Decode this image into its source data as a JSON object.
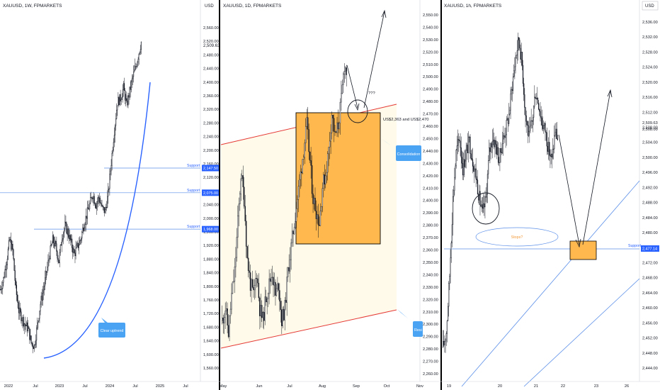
{
  "panels": [
    {
      "symbol": "XAUUSD, 1W, FPMARKETS",
      "currency": "USD",
      "price_ticks": [
        "2,560.00",
        "2,520.00",
        "2,480.00",
        "2,440.00",
        "2,400.00",
        "2,360.00",
        "2,320.00",
        "2,280.00",
        "2,240.00",
        "2,200.00",
        "2,160.00",
        "2,120.00",
        "2,080.00",
        "2,040.00",
        "2,000.00",
        "1,960.00",
        "1,920.00",
        "1,880.00",
        "1,840.00",
        "1,800.00",
        "1,760.00",
        "1,720.00",
        "1,680.00",
        "1,640.00",
        "1,600.00",
        "1,560.00"
      ],
      "time_ticks": [
        "2022",
        "Jul",
        "2023",
        "Jul",
        "2024",
        "Jul",
        "2025",
        "Jul"
      ],
      "last_price": "2,509.63",
      "support_levels": [
        {
          "label": "Support",
          "tag": "2,147.50"
        },
        {
          "label": "Support",
          "tag": "2,075.00"
        },
        {
          "label": "Support",
          "tag": "1,968.00"
        }
      ],
      "callout": "Clear uptrend"
    },
    {
      "symbol": "XAUUSD, 1D, FPMARKETS",
      "price_ticks": [
        "2,550.00",
        "2,540.00",
        "2,530.00",
        "2,520.00",
        "2,510.00",
        "2,500.00",
        "2,490.00",
        "2,480.00",
        "2,470.00",
        "2,460.00",
        "2,450.00",
        "2,440.00",
        "2,430.00",
        "2,420.00",
        "2,410.00",
        "2,400.00",
        "2,390.00",
        "2,380.00",
        "2,370.00",
        "2,360.00",
        "2,350.00",
        "2,340.00",
        "2,330.00",
        "2,320.00",
        "2,310.00",
        "2,300.00",
        "2,290.00",
        "2,280.00",
        "2,270.00",
        "2,260.00"
      ],
      "time_ticks": [
        "May",
        "Jun",
        "Jul",
        "Aug",
        "Sep",
        "Oct",
        "Nov"
      ],
      "question": "???",
      "range_note": "US$2,363 and US$2,470",
      "callout": "Consolidation",
      "callout2": "Resi"
    },
    {
      "symbol": "XAUUSD, 1h, FPMARKETS",
      "currency": "USD",
      "price_ticks": [
        "2,536.00",
        "2,532.00",
        "2,528.00",
        "2,524.00",
        "2,520.00",
        "2,516.00",
        "2,512.00",
        "2,508.00",
        "2,504.00",
        "2,500.00",
        "2,496.00",
        "2,492.00",
        "2,488.00",
        "2,484.00",
        "2,480.00",
        "2,476.00",
        "2,472.00",
        "2,468.00",
        "2,464.00",
        "2,460.00",
        "2,456.00",
        "2,452.00",
        "2,448.00",
        "2,444.00"
      ],
      "time_ticks": [
        "19",
        "20",
        "21",
        "22",
        "23",
        "26"
      ],
      "last_price": "2,509.63",
      "last_price_sub": "2,508.00",
      "support_label": "Support",
      "support_tag": "2,477.14",
      "stops_note": "Stops?"
    }
  ],
  "chart_data": [
    {
      "type": "candlestick",
      "title": "XAUUSD, 1W, FPMARKETS",
      "ylim": [
        1540,
        2580
      ],
      "x": [
        "2022",
        "Jul",
        "2023",
        "Jul",
        "2024",
        "Jul",
        "2025",
        "Jul"
      ],
      "close_path": [
        1800,
        1830,
        1880,
        1940,
        1910,
        1800,
        1740,
        1720,
        1700,
        1690,
        1650,
        1640,
        1700,
        1760,
        1800,
        1850,
        1900,
        1940,
        1920,
        1880,
        1950,
        1980,
        1960,
        1930,
        1900,
        1920,
        1940,
        1980,
        2010,
        2040,
        2070,
        2040,
        2060,
        2030,
        2020,
        2070,
        2160,
        2250,
        2330,
        2340,
        2370,
        2320,
        2360,
        2400,
        2430,
        2470,
        2509
      ],
      "support": [
        2147.5,
        2075.0,
        1968.0
      ],
      "last": 2509.63,
      "annotations": [
        "Clear uptrend"
      ]
    },
    {
      "type": "candlestick",
      "title": "XAUUSD, 1D, FPMARKETS",
      "ylim": [
        2250,
        2560
      ],
      "x": [
        "May",
        "Jun",
        "Jul",
        "Aug",
        "Sep",
        "Oct",
        "Nov"
      ],
      "close_path": [
        2300,
        2310,
        2290,
        2320,
        2340,
        2380,
        2420,
        2400,
        2350,
        2330,
        2320,
        2340,
        2310,
        2300,
        2320,
        2330,
        2340,
        2320,
        2330,
        2300,
        2310,
        2340,
        2360,
        2380,
        2400,
        2420,
        2440,
        2460,
        2430,
        2400,
        2390,
        2380,
        2410,
        2420,
        2440,
        2470,
        2450,
        2460,
        2480,
        2510,
        2500
      ],
      "consolidation_range": [
        2363,
        2470
      ],
      "annotations": [
        "???",
        "US$2,363 and US$2,470",
        "Consolidation",
        "Resi"
      ]
    },
    {
      "type": "candlestick",
      "title": "XAUUSD, 1h, FPMARKETS",
      "ylim": [
        2442,
        2538
      ],
      "x": [
        "19",
        "20",
        "21",
        "22",
        "23",
        "26"
      ],
      "close_path": [
        2451,
        2455,
        2470,
        2490,
        2502,
        2506,
        2498,
        2502,
        2505,
        2500,
        2496,
        2490,
        2486,
        2490,
        2502,
        2506,
        2504,
        2500,
        2505,
        2508,
        2512,
        2520,
        2527,
        2532,
        2525,
        2512,
        2506,
        2510,
        2518,
        2515,
        2510,
        2508,
        2503,
        2500,
        2508,
        2505
      ],
      "support": 2477.14,
      "last": 2509.63,
      "annotations": [
        "Stops?"
      ]
    }
  ]
}
